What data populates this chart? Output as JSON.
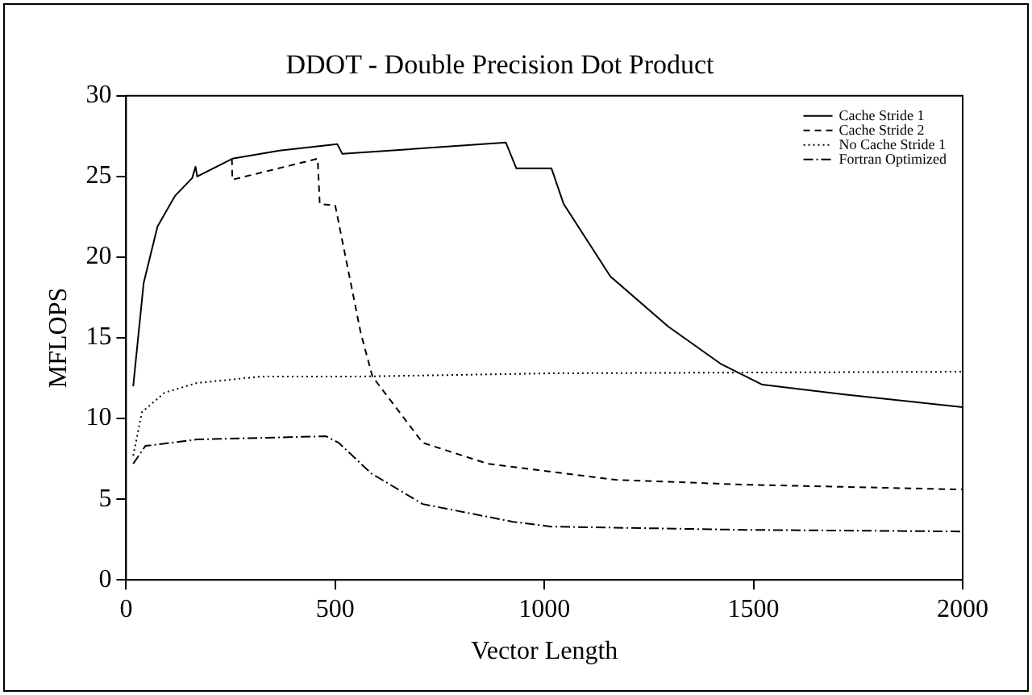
{
  "chart_data": {
    "type": "line",
    "title": "DDOT - Double Precision Dot Product",
    "xlabel": "Vector Length",
    "ylabel": "MFLOPS",
    "xlim": [
      0,
      2000
    ],
    "xticks": [
      0,
      500,
      1000,
      1500,
      2000
    ],
    "ylim": [
      0,
      30
    ],
    "yticks": [
      0,
      5,
      10,
      15,
      20,
      25,
      30
    ],
    "grid": false,
    "legend": "top right",
    "marker": "none",
    "series": [
      {
        "name": "Cache Stride 1",
        "color": "#000000",
        "line_style": "solid",
        "x": [
          17,
          42,
          75,
          117,
          158,
          166,
          170,
          254,
          367,
          505,
          517,
          908,
          933,
          1017,
          1046,
          1158,
          1296,
          1421,
          1521,
          1713,
          2000
        ],
        "values": [
          12.0,
          18.4,
          21.9,
          23.8,
          24.9,
          25.6,
          25.0,
          26.1,
          26.6,
          27.0,
          26.4,
          27.1,
          25.5,
          25.5,
          23.3,
          18.8,
          15.7,
          13.4,
          12.1,
          11.5,
          10.7
        ]
      },
      {
        "name": "Cache Stride 2",
        "color": "#000000",
        "line_style": "dashed",
        "x": [
          253,
          254,
          458,
          463,
          500,
          561,
          589,
          709,
          864,
          1171,
          1480,
          2000
        ],
        "values": [
          26.1,
          24.8,
          26.1,
          23.3,
          23.2,
          15.3,
          12.6,
          8.5,
          7.2,
          6.2,
          5.9,
          5.6
        ]
      },
      {
        "name": "No Cache Stride 1",
        "color": "#000000",
        "line_style": "dotted",
        "x": [
          17,
          38,
          92,
          169,
          323,
          554,
          1017,
          2000
        ],
        "values": [
          7.7,
          10.4,
          11.6,
          12.2,
          12.6,
          12.6,
          12.8,
          12.9
        ]
      },
      {
        "name": "Fortran Optimized",
        "color": "#000000",
        "line_style": "dashdot",
        "x": [
          17,
          46,
          169,
          478,
          508,
          586,
          709,
          925,
          1017,
          1480,
          2000
        ],
        "values": [
          7.2,
          8.3,
          8.7,
          8.9,
          8.5,
          6.6,
          4.7,
          3.6,
          3.3,
          3.1,
          3.0
        ]
      }
    ]
  }
}
